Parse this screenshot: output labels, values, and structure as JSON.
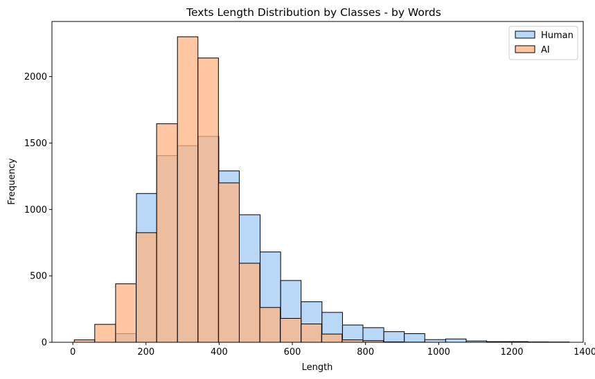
{
  "chart_data": {
    "type": "histogram",
    "title": "Texts Length Distribution by Classes - by Words",
    "xlabel": "Length",
    "ylabel": "Frequency",
    "xlim": [
      -57,
      1395
    ],
    "ylim": [
      0,
      2415
    ],
    "xticks": [
      0,
      200,
      400,
      600,
      800,
      1000,
      1200,
      1400
    ],
    "yticks": [
      0,
      500,
      1000,
      1500,
      2000
    ],
    "grid": false,
    "legend_position": "top-right",
    "series": [
      {
        "name": "Human",
        "color": "#a1c9f4",
        "bin_edges": [
          117,
          174,
          230,
          286,
          343,
          399,
          455,
          512,
          568,
          624,
          681,
          737,
          793,
          850,
          906,
          962,
          1019,
          1075,
          1131,
          1188,
          1244,
          1300,
          1357
        ],
        "counts": [
          65,
          1120,
          1405,
          1480,
          1550,
          1290,
          960,
          680,
          465,
          305,
          225,
          130,
          110,
          80,
          65,
          20,
          25,
          10,
          5,
          5,
          3,
          2
        ]
      },
      {
        "name": "AI",
        "color": "#ffb482",
        "bin_edges": [
          4,
          60,
          117,
          173,
          229,
          286,
          342,
          398,
          455,
          511,
          567,
          624,
          680,
          736,
          793,
          849,
          905,
          962
        ],
        "counts": [
          18,
          135,
          440,
          825,
          1645,
          2300,
          2140,
          1200,
          595,
          262,
          180,
          138,
          62,
          18,
          12,
          3,
          1
        ]
      }
    ]
  }
}
